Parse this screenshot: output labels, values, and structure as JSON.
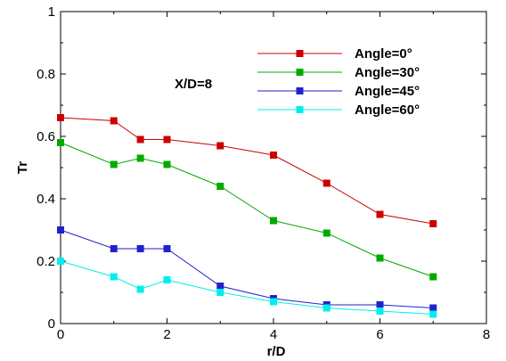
{
  "chart_data": {
    "type": "line",
    "title": "",
    "xlabel": "r/D",
    "ylabel": "Tr",
    "xlim": [
      0,
      8
    ],
    "ylim": [
      0,
      1
    ],
    "xticks": [
      0,
      2,
      4,
      6,
      8
    ],
    "yticks": [
      0,
      0.2,
      0.4,
      0.6,
      0.8,
      1
    ],
    "xtick_labels": [
      "0",
      "2",
      "4",
      "6",
      "8"
    ],
    "ytick_labels": [
      "0",
      "0.2",
      "0.4",
      "0.6",
      "0.8",
      "1"
    ],
    "grid": false,
    "legend_position": "top-right",
    "annotation": "X/D=8",
    "series": [
      {
        "name": "Angle=0°",
        "color": "#cc0000",
        "x": [
          0,
          1,
          1.5,
          2,
          3,
          4,
          5,
          6,
          7
        ],
        "y": [
          0.66,
          0.65,
          0.59,
          0.59,
          0.57,
          0.54,
          0.45,
          0.35,
          0.32
        ]
      },
      {
        "name": "Angle=30°",
        "color": "#00aa00",
        "x": [
          0,
          1,
          1.5,
          2,
          3,
          4,
          5,
          6,
          7
        ],
        "y": [
          0.58,
          0.51,
          0.53,
          0.51,
          0.44,
          0.33,
          0.29,
          0.21,
          0.15
        ]
      },
      {
        "name": "Angle=45°",
        "color": "#2222cc",
        "x": [
          0,
          1,
          1.5,
          2,
          3,
          4,
          5,
          6,
          7
        ],
        "y": [
          0.3,
          0.24,
          0.24,
          0.24,
          0.12,
          0.08,
          0.06,
          0.06,
          0.05
        ]
      },
      {
        "name": "Angle=60°",
        "color": "#00eeee",
        "x": [
          0,
          1,
          1.5,
          2,
          3,
          4,
          5,
          6,
          7
        ],
        "y": [
          0.2,
          0.15,
          0.11,
          0.14,
          0.1,
          0.07,
          0.05,
          0.04,
          0.03
        ]
      }
    ]
  }
}
